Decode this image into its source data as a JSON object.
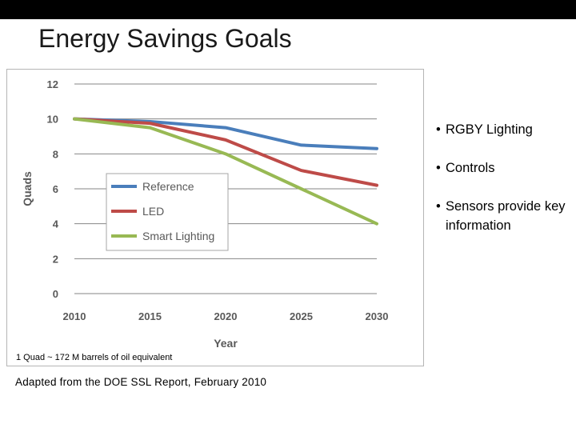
{
  "slide": {
    "title": "Energy Savings Goals",
    "bullets": [
      "RGBY  Lighting",
      "Controls",
      "Sensors provide key information"
    ],
    "footnote": "1 Quad ~ 172 M barrels of oil equivalent",
    "source": "Adapted from the DOE SSL Report, February 2010"
  },
  "colors": {
    "Reference": "#4a7ebb",
    "LED": "#be4b48",
    "Smart Lighting": "#98b954",
    "grid": "#868686",
    "axis_text": "#595959"
  },
  "chart_data": {
    "type": "line",
    "title": "",
    "xlabel": "Year",
    "ylabel": "Quads",
    "x": [
      2010,
      2015,
      2020,
      2025,
      2030
    ],
    "x_tick_labels": [
      "2010",
      "2015",
      "2020",
      "2025",
      "2030"
    ],
    "y_ticks": [
      0,
      2,
      4,
      6,
      8,
      10,
      12
    ],
    "ylim": [
      0,
      12
    ],
    "grid": true,
    "legend_position": "center-left",
    "series": [
      {
        "name": "Reference",
        "values": [
          10,
          9.85,
          9.5,
          8.5,
          8.3
        ]
      },
      {
        "name": "LED",
        "values": [
          10,
          9.75,
          8.8,
          7.05,
          6.2
        ]
      },
      {
        "name": "Smart Lighting",
        "values": [
          10,
          9.5,
          8.0,
          6.0,
          4.0
        ]
      }
    ]
  }
}
